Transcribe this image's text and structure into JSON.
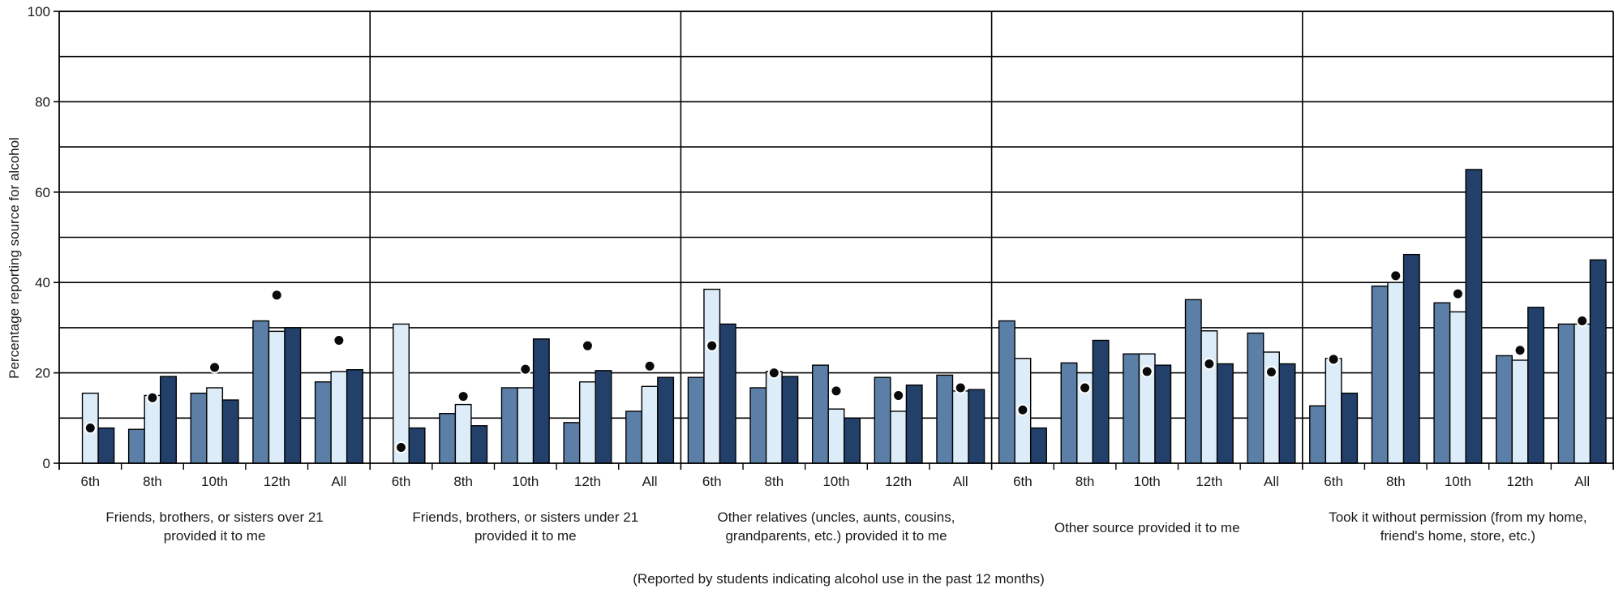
{
  "chart_data": {
    "type": "bar",
    "ylabel": "Percentage reporting source for alcohol",
    "xlabel": "(Reported by students indicating alcohol use in the past 12 months)",
    "ylim": [
      0,
      100
    ],
    "yticks": [
      0,
      20,
      40,
      60,
      80,
      100
    ],
    "grid": true,
    "legend": "none",
    "colors": {
      "series1": "#5b7fa6",
      "series2": "#dcecf8",
      "series3": "#22406a",
      "marker": "#0a0a0a"
    },
    "groups": [
      {
        "label_lines": [
          "Friends, brothers, or sisters over 21",
          "provided it to me"
        ],
        "categories": [
          "6th",
          "8th",
          "10th",
          "12th",
          "All"
        ],
        "values": [
          [
            null,
            15.5,
            7.8
          ],
          [
            7.5,
            15,
            19.2
          ],
          [
            15.5,
            16.7,
            14
          ],
          [
            31.5,
            29.2,
            30
          ],
          [
            18,
            20.3,
            20.7
          ]
        ],
        "markers": [
          7.8,
          14.5,
          21.2,
          37.2,
          27.2
        ]
      },
      {
        "label_lines": [
          "Friends, brothers, or sisters under 21",
          "provided it to me"
        ],
        "categories": [
          "6th",
          "8th",
          "10th",
          "12th",
          "All"
        ],
        "values": [
          [
            null,
            30.8,
            7.8
          ],
          [
            11,
            13,
            8.3
          ],
          [
            16.7,
            16.7,
            27.5
          ],
          [
            9,
            18,
            20.5
          ],
          [
            11.5,
            17,
            19
          ]
        ],
        "markers": [
          3.5,
          14.8,
          20.8,
          26,
          21.5
        ]
      },
      {
        "label_lines": [
          "Other relatives (uncles, aunts, cousins,",
          "grandparents, etc.) provided it to me"
        ],
        "categories": [
          "6th",
          "8th",
          "10th",
          "12th",
          "All"
        ],
        "values": [
          [
            19,
            38.5,
            30.8
          ],
          [
            16.7,
            20.3,
            19.2
          ],
          [
            21.7,
            12,
            10
          ],
          [
            19,
            11.5,
            17.3
          ],
          [
            19.5,
            16,
            16.3
          ]
        ],
        "markers": [
          26,
          20,
          16,
          15,
          16.7
        ]
      },
      {
        "label_lines": [
          "Other source provided it to me"
        ],
        "categories": [
          "6th",
          "8th",
          "10th",
          "12th",
          "All"
        ],
        "values": [
          [
            31.5,
            23.2,
            7.8
          ],
          [
            22.2,
            20,
            27.2
          ],
          [
            24.2,
            24.2,
            21.7
          ],
          [
            36.2,
            29.3,
            22
          ],
          [
            28.8,
            24.6,
            22
          ]
        ],
        "markers": [
          11.8,
          16.7,
          20.3,
          22,
          20.2
        ]
      },
      {
        "label_lines": [
          "Took it without permission (from my home,",
          "friend's home, store, etc.)"
        ],
        "categories": [
          "6th",
          "8th",
          "10th",
          "12th",
          "All"
        ],
        "values": [
          [
            12.7,
            23.2,
            15.5
          ],
          [
            39.2,
            40,
            46.2
          ],
          [
            35.5,
            33.5,
            65
          ],
          [
            23.8,
            22.8,
            34.5
          ],
          [
            30.8,
            30.8,
            45
          ]
        ],
        "markers": [
          23,
          41.5,
          37.5,
          25,
          31.5
        ]
      }
    ]
  }
}
